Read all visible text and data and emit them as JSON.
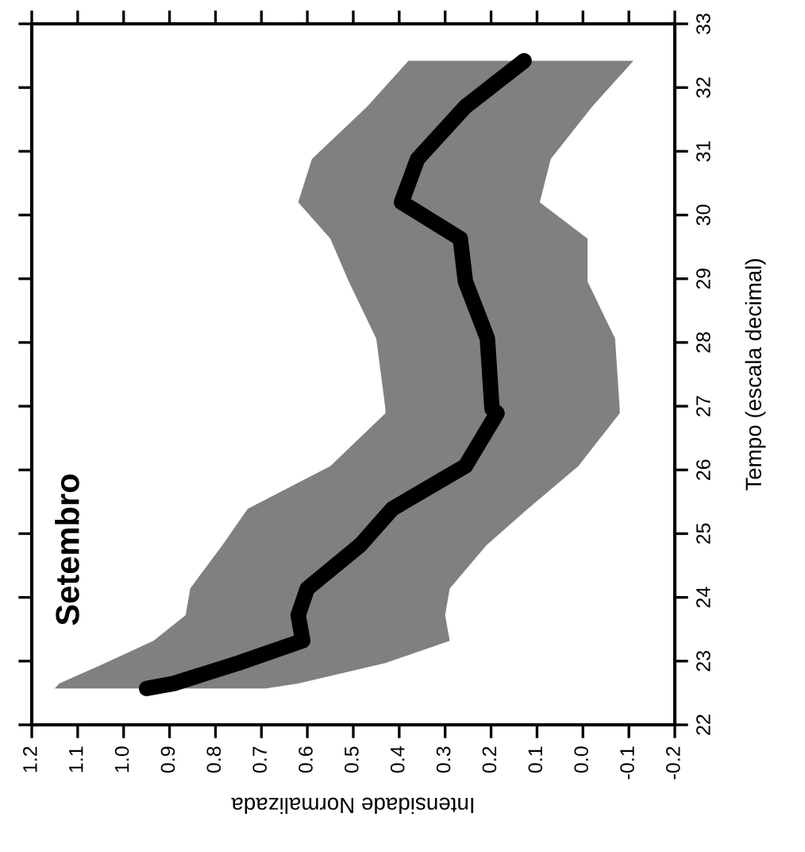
{
  "chart_data": {
    "type": "line",
    "title": "Setembro",
    "xlabel": "Intensidade Normalizada",
    "ylabel": "Tempo (escala decimal)",
    "xlim": [
      1.2,
      -0.2
    ],
    "ylim": [
      22,
      33
    ],
    "xticks": [
      1.2,
      1.1,
      {
        "value": 1,
        "label": "1.0"
      },
      0.9,
      0.8,
      0.7,
      0.6,
      0.5,
      0.4,
      0.3,
      0.2,
      0.1,
      {
        "value": 0,
        "label": "0.0"
      },
      -0.1,
      -0.2
    ],
    "yticks": [
      22,
      23,
      24,
      25,
      26,
      27,
      28,
      29,
      30,
      31,
      32,
      33
    ],
    "series": [
      {
        "type": "area",
        "color": "#808080",
        "x": [
          1.15,
          1.14,
          1.04,
          0.935,
          0.865,
          0.855,
          0.785,
          0.73,
          0.55,
          0.43,
          0.43,
          0.45,
          0.51,
          0.55,
          0.62,
          0.59,
          0.47,
          0.38,
          -0.11,
          -0.02,
          0.07,
          0.094,
          -0.01,
          -0.01,
          -0.07,
          -0.08,
          -0.08,
          0.01,
          0.12,
          0.21,
          0.29,
          0.3,
          0.29,
          0.43,
          0.62,
          0.69
        ],
        "values": [
          22.57,
          22.65,
          22.97,
          23.32,
          23.72,
          24.14,
          24.82,
          25.39,
          26.06,
          26.89,
          26.96,
          28.06,
          28.96,
          29.63,
          30.2,
          30.88,
          31.7,
          32.42,
          32.42,
          31.7,
          30.88,
          30.2,
          29.63,
          28.96,
          28.06,
          26.96,
          26.89,
          26.06,
          25.39,
          24.82,
          24.14,
          23.72,
          23.32,
          22.97,
          22.65,
          22.57
        ]
      },
      {
        "color": "#000000",
        "x": [
          0.95,
          0.89,
          0.75,
          0.61,
          0.62,
          0.6,
          0.485,
          0.415,
          0.256,
          0.187,
          0.198,
          0.208,
          0.256,
          0.267,
          0.395,
          0.36,
          0.256,
          0.128
        ],
        "values": [
          22.57,
          22.65,
          22.97,
          23.32,
          23.72,
          24.14,
          24.82,
          25.39,
          26.06,
          26.89,
          26.96,
          28.06,
          28.96,
          29.63,
          30.2,
          30.88,
          31.7,
          32.42
        ]
      }
    ]
  }
}
